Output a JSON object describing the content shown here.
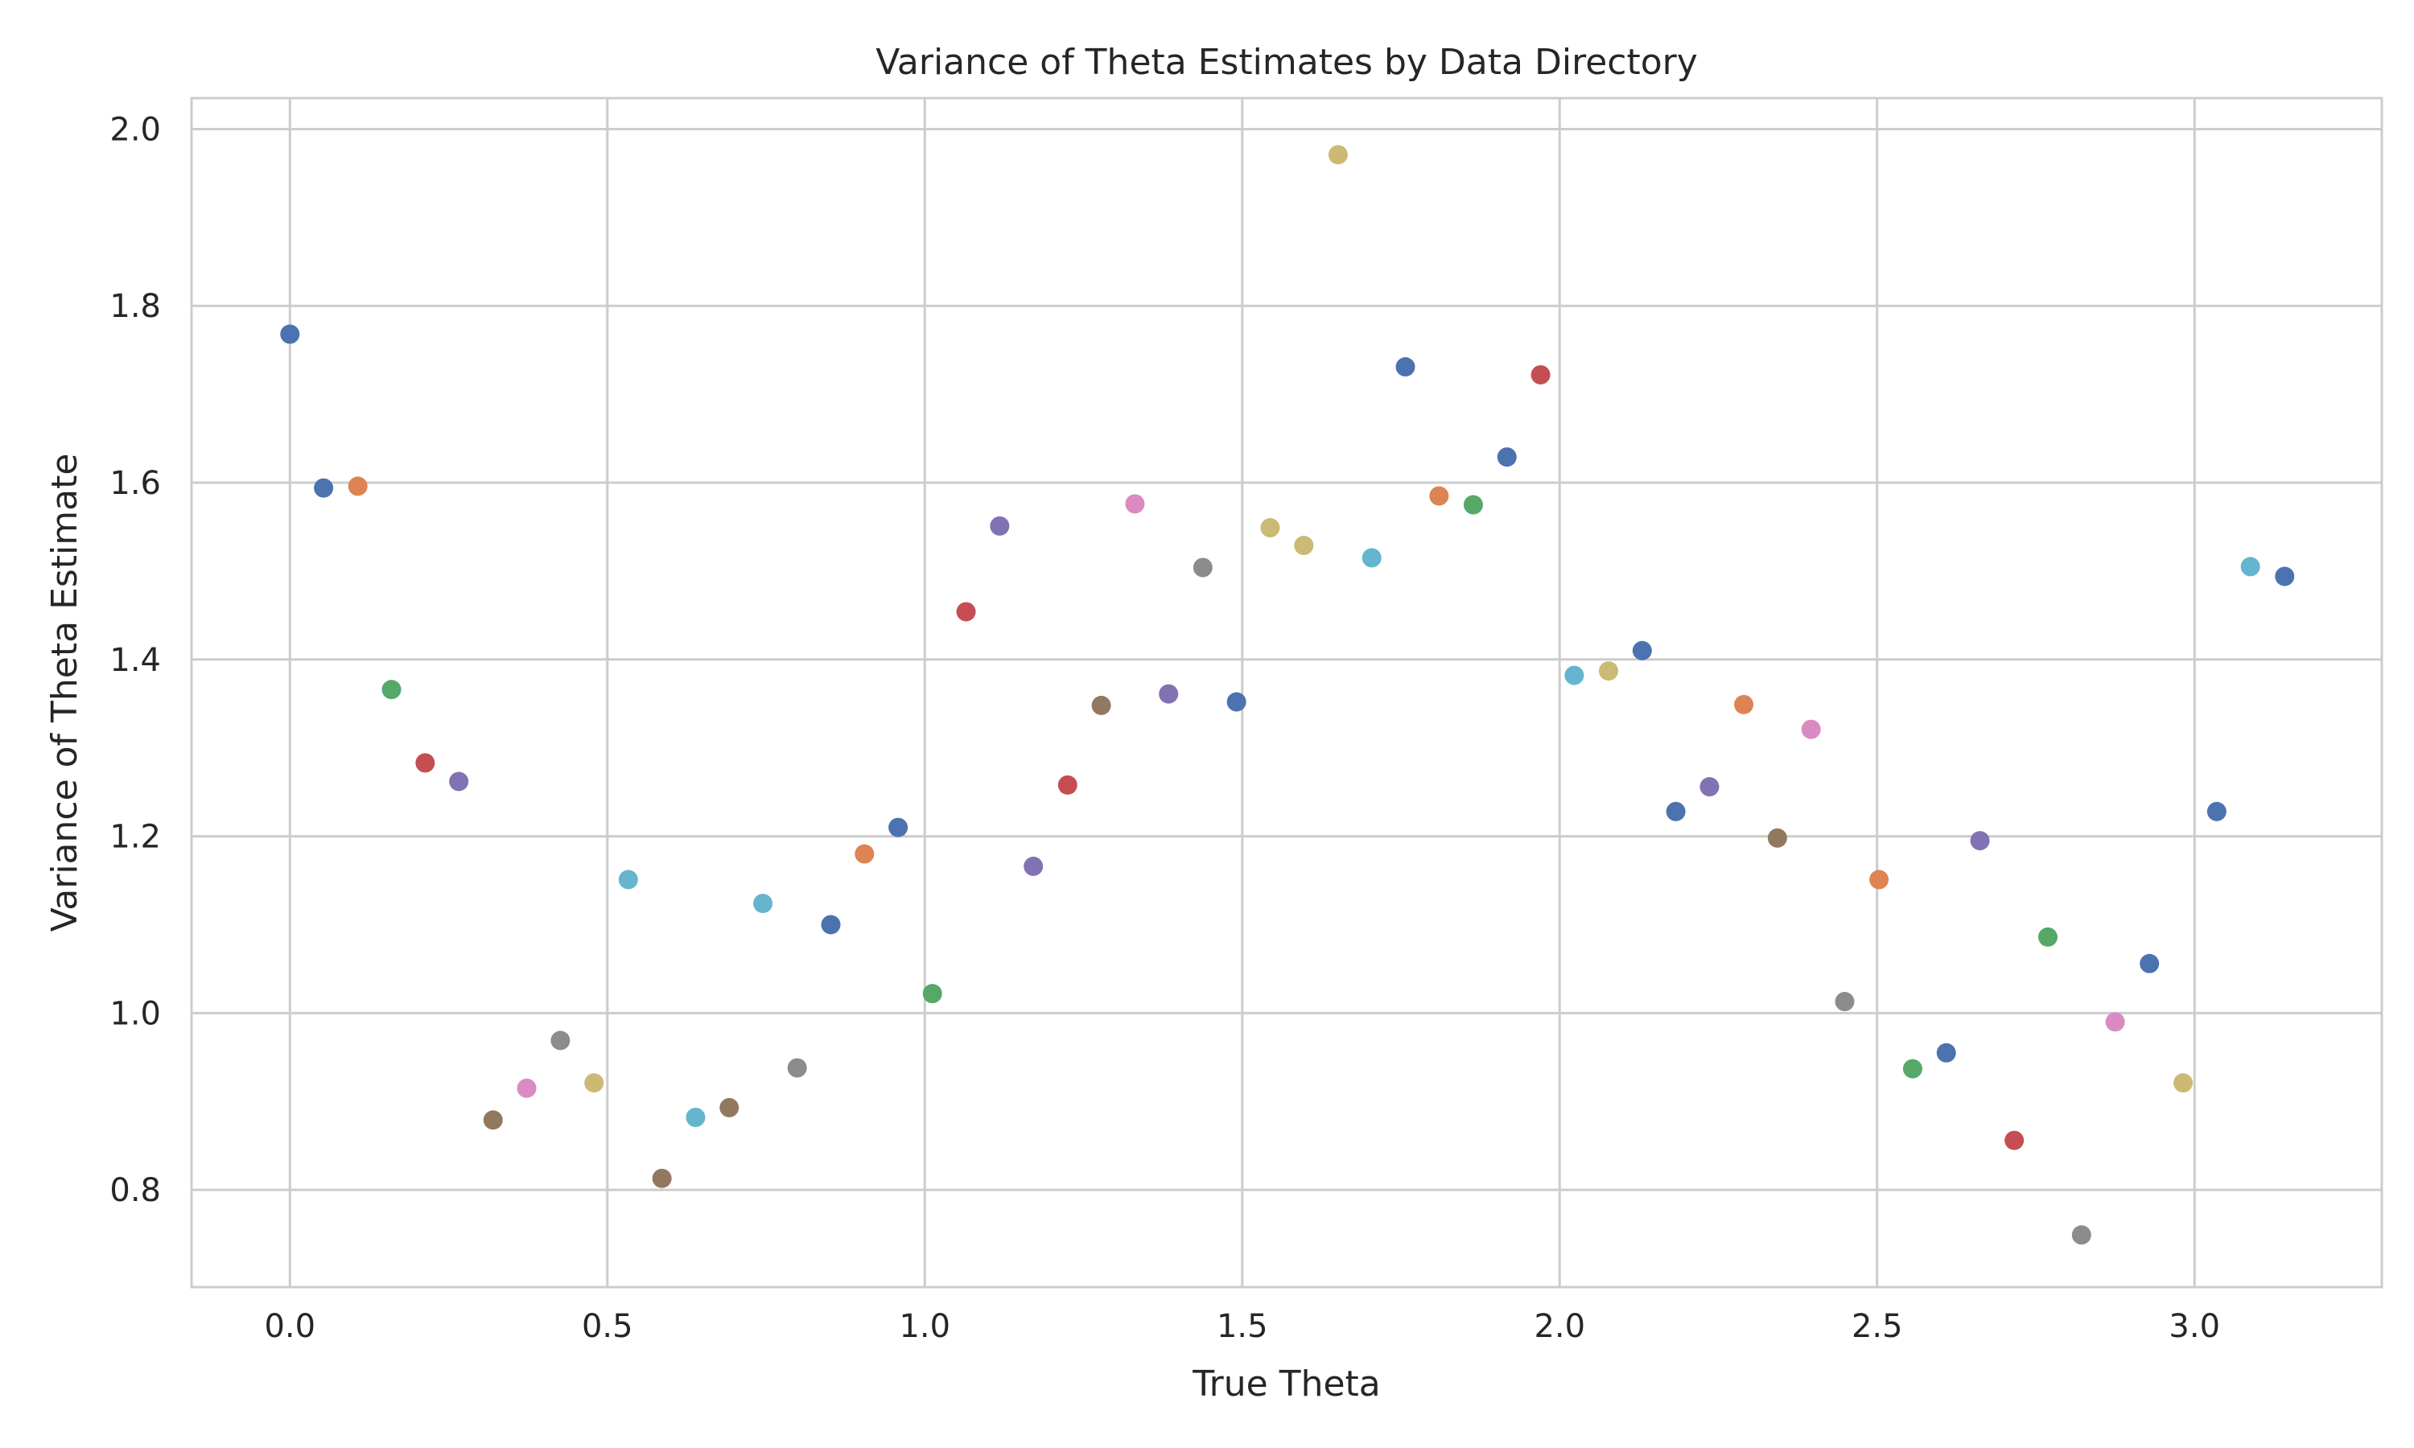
{
  "chart_data": {
    "type": "scatter",
    "title": "Variance of Theta Estimates by Data Directory",
    "xlabel": "True Theta",
    "ylabel": "Variance of Theta Estimate",
    "xlim": [
      -0.155,
      3.295
    ],
    "ylim": [
      0.69,
      2.035
    ],
    "xticks": [
      0.0,
      0.5,
      1.0,
      1.5,
      2.0,
      2.5,
      3.0
    ],
    "xtick_labels": [
      "0.0",
      "0.5",
      "1.0",
      "1.5",
      "2.0",
      "2.5",
      "3.0"
    ],
    "yticks": [
      0.8,
      1.0,
      1.2,
      1.4,
      1.6,
      1.8,
      2.0
    ],
    "ytick_labels": [
      "0.8",
      "1.0",
      "1.2",
      "1.4",
      "1.6",
      "1.8",
      "2.0"
    ],
    "grid": true,
    "palette": [
      "#4c72b0",
      "#dd8452",
      "#55a868",
      "#c44e52",
      "#8172b3",
      "#937860",
      "#da8bc3",
      "#8c8c8c",
      "#ccb974",
      "#64b5cd"
    ],
    "points": [
      {
        "x": 0.0,
        "y": 1.768,
        "color": "#4c72b0"
      },
      {
        "x": 0.053,
        "y": 1.594,
        "color": "#4c72b0"
      },
      {
        "x": 0.107,
        "y": 1.596,
        "color": "#dd8452"
      },
      {
        "x": 0.16,
        "y": 1.366,
        "color": "#55a868"
      },
      {
        "x": 0.213,
        "y": 1.283,
        "color": "#c44e52"
      },
      {
        "x": 0.266,
        "y": 1.262,
        "color": "#8172b3"
      },
      {
        "x": 0.32,
        "y": 0.879,
        "color": "#937860"
      },
      {
        "x": 0.373,
        "y": 0.915,
        "color": "#da8bc3"
      },
      {
        "x": 0.426,
        "y": 0.969,
        "color": "#8c8c8c"
      },
      {
        "x": 0.479,
        "y": 0.921,
        "color": "#ccb974"
      },
      {
        "x": 0.533,
        "y": 1.151,
        "color": "#64b5cd"
      },
      {
        "x": 0.586,
        "y": 0.813,
        "color": "#937860"
      },
      {
        "x": 0.639,
        "y": 0.882,
        "color": "#64b5cd"
      },
      {
        "x": 0.692,
        "y": 0.893,
        "color": "#937860"
      },
      {
        "x": 0.745,
        "y": 1.124,
        "color": "#64b5cd"
      },
      {
        "x": 0.799,
        "y": 0.938,
        "color": "#8c8c8c"
      },
      {
        "x": 0.852,
        "y": 1.1,
        "color": "#4c72b0"
      },
      {
        "x": 0.905,
        "y": 1.18,
        "color": "#dd8452"
      },
      {
        "x": 0.958,
        "y": 1.21,
        "color": "#4c72b0"
      },
      {
        "x": 1.012,
        "y": 1.022,
        "color": "#55a868"
      },
      {
        "x": 1.065,
        "y": 1.454,
        "color": "#c44e52"
      },
      {
        "x": 1.118,
        "y": 1.551,
        "color": "#8172b3"
      },
      {
        "x": 1.171,
        "y": 1.166,
        "color": "#8172b3"
      },
      {
        "x": 1.225,
        "y": 1.258,
        "color": "#c44e52"
      },
      {
        "x": 1.278,
        "y": 1.348,
        "color": "#937860"
      },
      {
        "x": 1.331,
        "y": 1.576,
        "color": "#da8bc3"
      },
      {
        "x": 1.384,
        "y": 1.361,
        "color": "#8172b3"
      },
      {
        "x": 1.438,
        "y": 1.504,
        "color": "#8c8c8c"
      },
      {
        "x": 1.491,
        "y": 1.352,
        "color": "#4c72b0"
      },
      {
        "x": 1.544,
        "y": 1.549,
        "color": "#ccb974"
      },
      {
        "x": 1.597,
        "y": 1.529,
        "color": "#ccb974"
      },
      {
        "x": 1.651,
        "y": 1.971,
        "color": "#ccb974"
      },
      {
        "x": 1.704,
        "y": 1.515,
        "color": "#64b5cd"
      },
      {
        "x": 1.757,
        "y": 1.731,
        "color": "#4c72b0"
      },
      {
        "x": 1.81,
        "y": 1.585,
        "color": "#dd8452"
      },
      {
        "x": 1.864,
        "y": 1.575,
        "color": "#55a868"
      },
      {
        "x": 1.917,
        "y": 1.629,
        "color": "#4c72b0"
      },
      {
        "x": 1.97,
        "y": 1.722,
        "color": "#c44e52"
      },
      {
        "x": 2.023,
        "y": 1.382,
        "color": "#64b5cd"
      },
      {
        "x": 2.077,
        "y": 1.387,
        "color": "#ccb974"
      },
      {
        "x": 2.13,
        "y": 1.41,
        "color": "#4c72b0"
      },
      {
        "x": 2.183,
        "y": 1.228,
        "color": "#4c72b0"
      },
      {
        "x": 2.236,
        "y": 1.256,
        "color": "#8172b3"
      },
      {
        "x": 2.29,
        "y": 1.349,
        "color": "#dd8452"
      },
      {
        "x": 2.343,
        "y": 1.198,
        "color": "#937860"
      },
      {
        "x": 2.396,
        "y": 1.321,
        "color": "#da8bc3"
      },
      {
        "x": 2.449,
        "y": 1.013,
        "color": "#8c8c8c"
      },
      {
        "x": 2.503,
        "y": 1.151,
        "color": "#dd8452"
      },
      {
        "x": 2.556,
        "y": 0.937,
        "color": "#55a868"
      },
      {
        "x": 2.609,
        "y": 0.955,
        "color": "#4c72b0"
      },
      {
        "x": 2.662,
        "y": 1.195,
        "color": "#8172b3"
      },
      {
        "x": 2.716,
        "y": 0.856,
        "color": "#c44e52"
      },
      {
        "x": 2.769,
        "y": 1.086,
        "color": "#55a868"
      },
      {
        "x": 2.822,
        "y": 0.749,
        "color": "#8c8c8c"
      },
      {
        "x": 2.875,
        "y": 0.99,
        "color": "#da8bc3"
      },
      {
        "x": 2.929,
        "y": 1.056,
        "color": "#4c72b0"
      },
      {
        "x": 2.982,
        "y": 0.921,
        "color": "#ccb974"
      },
      {
        "x": 3.035,
        "y": 1.228,
        "color": "#4c72b0"
      },
      {
        "x": 3.088,
        "y": 1.505,
        "color": "#64b5cd"
      },
      {
        "x": 3.142,
        "y": 1.494,
        "color": "#4c72b0"
      }
    ]
  }
}
